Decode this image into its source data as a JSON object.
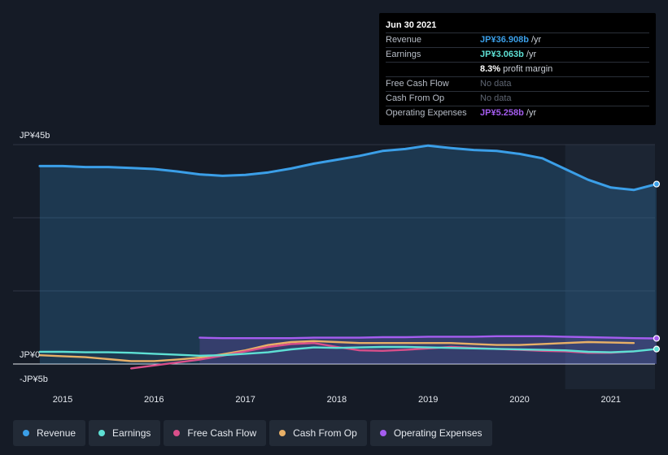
{
  "tooltip": {
    "date": "Jun 30 2021",
    "rows": [
      {
        "label": "Revenue",
        "value": "JP¥36.908b",
        "suffix": " /yr",
        "color": "#3b9fe8"
      },
      {
        "label": "Earnings",
        "value": "JP¥3.063b",
        "suffix": " /yr",
        "color": "#5ee0d4"
      },
      {
        "label": "",
        "value": "8.3%",
        "suffix": " profit margin",
        "color": "#ffffff"
      },
      {
        "label": "Free Cash Flow",
        "value": "No data",
        "suffix": "",
        "color": "#5f6673"
      },
      {
        "label": "Cash From Op",
        "value": "No data",
        "suffix": "",
        "color": "#5f6673"
      },
      {
        "label": "Operating Expenses",
        "value": "JP¥5.258b",
        "suffix": " /yr",
        "color": "#a55df0"
      }
    ]
  },
  "legend": [
    {
      "label": "Revenue",
      "color": "#3b9fe8"
    },
    {
      "label": "Earnings",
      "color": "#5ee0d4"
    },
    {
      "label": "Free Cash Flow",
      "color": "#d94f8a"
    },
    {
      "label": "Cash From Op",
      "color": "#e8b067"
    },
    {
      "label": "Operating Expenses",
      "color": "#a55df0"
    }
  ],
  "chart_data": {
    "type": "area",
    "y_tick_labels": [
      {
        "label": "JP¥45b",
        "value": 45
      },
      {
        "label": "JP¥0",
        "value": 0
      },
      {
        "label": "-JP¥5b",
        "value": -5
      }
    ],
    "ylim": [
      -5,
      45
    ],
    "xlim": [
      2014.6,
      2021.5
    ],
    "x_tick_labels": [
      "2015",
      "2016",
      "2017",
      "2018",
      "2019",
      "2020",
      "2021"
    ],
    "x_ticks": [
      2015,
      2016,
      2017,
      2018,
      2019,
      2020,
      2021
    ],
    "grid": true,
    "legend_position": "bottom",
    "forecast_start": 2020.5,
    "series": [
      {
        "name": "Revenue",
        "color": "#3b9fe8",
        "fill": true,
        "x": [
          2014.75,
          2015.0,
          2015.25,
          2015.5,
          2015.75,
          2016.0,
          2016.25,
          2016.5,
          2016.75,
          2017.0,
          2017.25,
          2017.5,
          2017.75,
          2018.0,
          2018.25,
          2018.5,
          2018.75,
          2019.0,
          2019.25,
          2019.5,
          2019.75,
          2020.0,
          2020.25,
          2020.5,
          2020.75,
          2021.0,
          2021.25,
          2021.5
        ],
        "y": [
          40.6,
          40.6,
          40.4,
          40.4,
          40.2,
          40.0,
          39.5,
          38.9,
          38.6,
          38.8,
          39.3,
          40.1,
          41.1,
          41.9,
          42.7,
          43.7,
          44.1,
          44.8,
          44.3,
          43.9,
          43.7,
          43.1,
          42.2,
          40.0,
          37.8,
          36.2,
          35.7,
          36.908
        ]
      },
      {
        "name": "Earnings",
        "color": "#5ee0d4",
        "fill": false,
        "x": [
          2014.75,
          2015.0,
          2015.25,
          2015.5,
          2015.75,
          2016.0,
          2016.25,
          2016.5,
          2016.75,
          2017.0,
          2017.25,
          2017.5,
          2017.75,
          2018.0,
          2018.25,
          2018.5,
          2018.75,
          2019.0,
          2019.25,
          2019.5,
          2019.75,
          2020.0,
          2020.25,
          2020.5,
          2020.75,
          2021.0,
          2021.25,
          2021.5
        ],
        "y": [
          2.5,
          2.5,
          2.4,
          2.4,
          2.3,
          2.1,
          1.9,
          1.7,
          1.8,
          2.1,
          2.4,
          3.0,
          3.4,
          3.3,
          3.4,
          3.5,
          3.5,
          3.4,
          3.3,
          3.2,
          3.1,
          3.0,
          2.9,
          2.8,
          2.5,
          2.4,
          2.6,
          3.063
        ]
      },
      {
        "name": "Free Cash Flow",
        "color": "#d94f8a",
        "fill": false,
        "x": [
          2015.75,
          2016.0,
          2016.25,
          2016.5,
          2016.75,
          2017.0,
          2017.25,
          2017.5,
          2017.75,
          2018.0,
          2018.25,
          2018.5,
          2018.75,
          2019.0,
          2019.25,
          2019.5,
          2019.75,
          2020.0,
          2020.25,
          2020.5,
          2020.75,
          2021.0,
          2021.25
        ],
        "y": [
          -0.9,
          -0.3,
          0.3,
          0.9,
          1.7,
          2.6,
          3.5,
          4.1,
          4.3,
          3.5,
          2.8,
          2.7,
          2.9,
          3.2,
          3.5,
          3.3,
          3.1,
          2.9,
          2.7,
          2.6,
          2.3,
          2.3,
          2.6
        ]
      },
      {
        "name": "Cash From Op",
        "color": "#e8b067",
        "fill": false,
        "x": [
          2014.75,
          2015.0,
          2015.25,
          2015.5,
          2015.75,
          2016.0,
          2016.25,
          2016.5,
          2016.75,
          2017.0,
          2017.25,
          2017.5,
          2017.75,
          2018.0,
          2018.25,
          2018.5,
          2018.75,
          2019.0,
          2019.25,
          2019.5,
          2019.75,
          2020.0,
          2020.25,
          2020.5,
          2020.75,
          2021.0,
          2021.25
        ],
        "y": [
          1.8,
          1.6,
          1.4,
          1.0,
          0.6,
          0.6,
          0.9,
          1.3,
          2.0,
          2.8,
          3.9,
          4.5,
          4.7,
          4.5,
          4.3,
          4.3,
          4.3,
          4.3,
          4.3,
          4.1,
          3.9,
          3.9,
          4.1,
          4.3,
          4.5,
          4.4,
          4.3
        ]
      },
      {
        "name": "Operating Expenses",
        "color": "#a55df0",
        "fill": true,
        "x": [
          2016.5,
          2016.75,
          2017.0,
          2017.25,
          2017.5,
          2017.75,
          2018.0,
          2018.25,
          2018.5,
          2018.75,
          2019.0,
          2019.25,
          2019.5,
          2019.75,
          2020.0,
          2020.25,
          2020.5,
          2020.75,
          2021.0,
          2021.25,
          2021.5
        ],
        "y": [
          5.4,
          5.3,
          5.3,
          5.3,
          5.3,
          5.4,
          5.4,
          5.4,
          5.5,
          5.5,
          5.6,
          5.6,
          5.6,
          5.7,
          5.7,
          5.7,
          5.6,
          5.5,
          5.4,
          5.3,
          5.258
        ]
      }
    ]
  }
}
